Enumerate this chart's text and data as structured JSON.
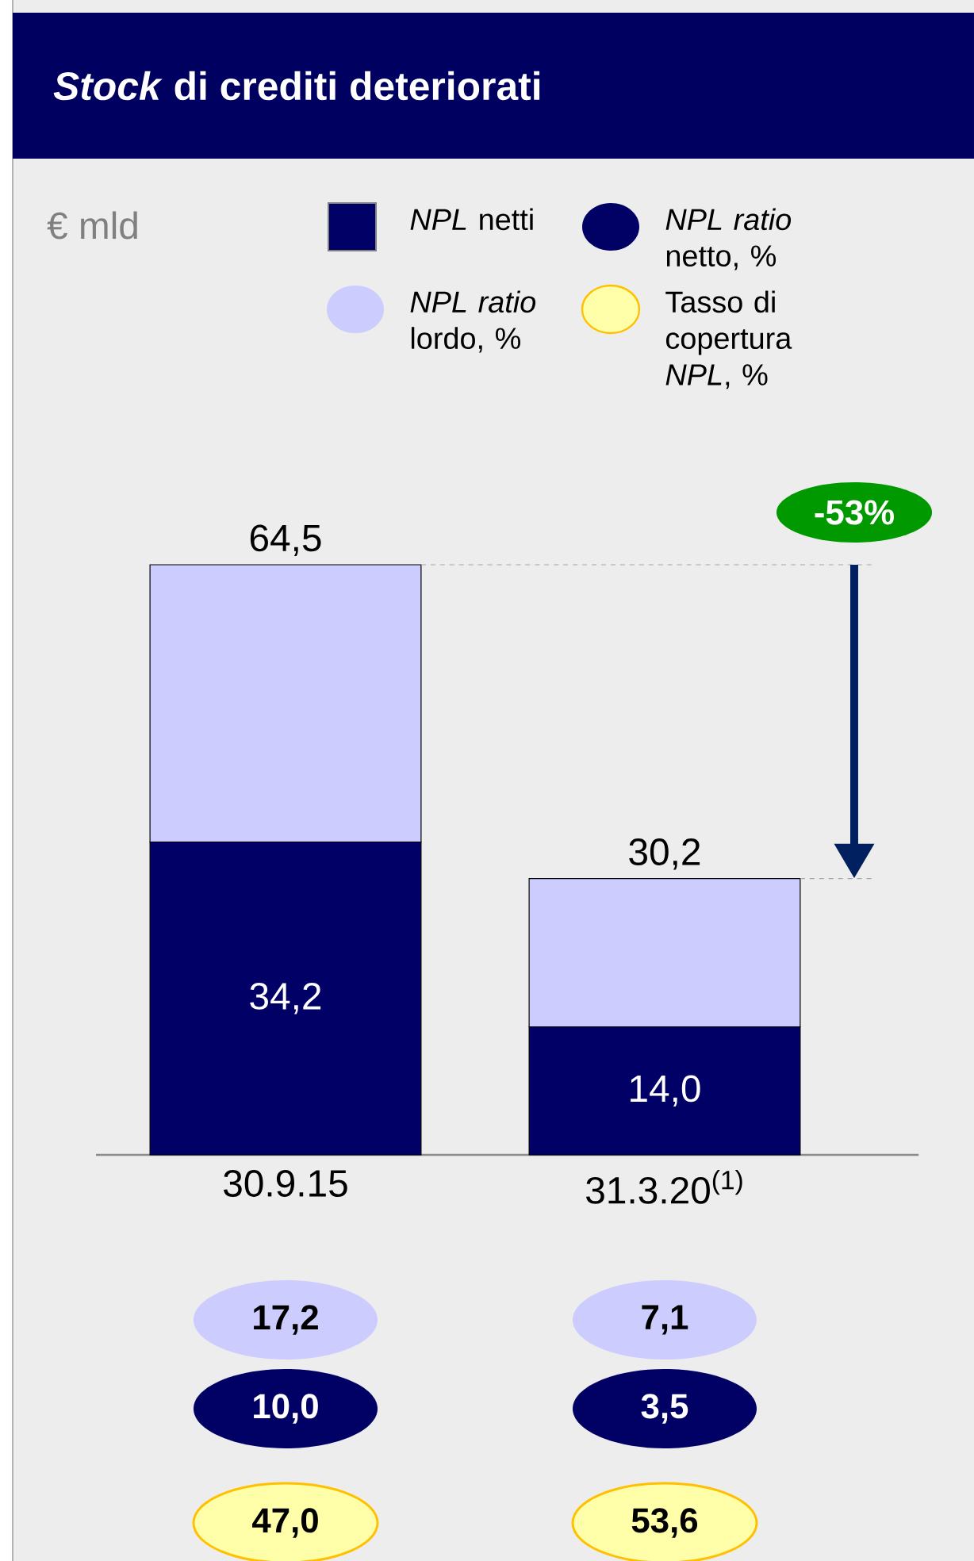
{
  "chart_data": {
    "type": "bar",
    "title": "*Stock* di crediti deteriorati",
    "stacked": true,
    "legend": "top",
    "categories": [
      "30.9.15",
      "31.3.20$^{(1)}$"
    ],
    "series": [
      {
        "name": "*NPL* netti",
        "color": "#000066",
        "values": [
          34.2,
          14.0
        ],
        "value_labels": [
          "34,2",
          "14,0"
        ]
      },
      {
        "color": "#ccccff",
        "values": [
          30.3,
          16.2
        ]
      }
    ],
    "totals": [
      "64,5",
      "30,2"
    ],
    "annotations": [
      "€ mld",
      "-53%",
      "*NPL ratio* lordo, %",
      "*NPL ratio* netto, %",
      "Tasso di copertura *NPL*, %",
      "17,2",
      "7,1",
      "10,0",
      "3,5",
      "47,0",
      "53,6"
    ]
  }
}
